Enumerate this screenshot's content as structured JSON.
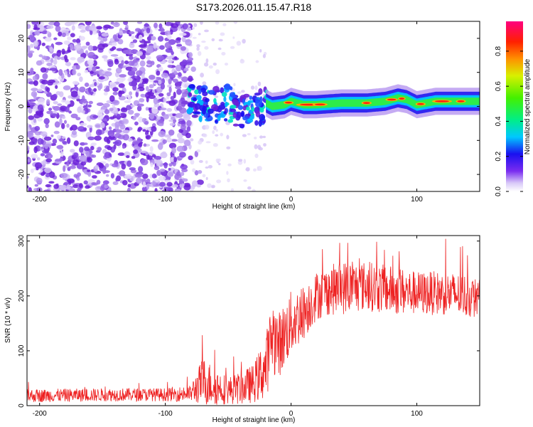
{
  "title": "S173.2026.011.15.47.R18",
  "chart_data": [
    {
      "type": "heatmap",
      "name": "spectrogram",
      "xlabel": "Height of straight line (km)",
      "ylabel": "Frequency (Hz)",
      "xlim": [
        -210,
        150
      ],
      "ylim": [
        -25,
        25
      ],
      "xticks": [
        -200,
        -100,
        0,
        100
      ],
      "yticks": [
        -20,
        -10,
        0,
        10,
        20
      ],
      "colorbar": {
        "label": "Normalized spectral amplitude",
        "range": [
          0,
          0.97
        ],
        "ticks": [
          0.0,
          0.2,
          0.4,
          0.6,
          0.8
        ]
      },
      "ridge": {
        "description": "Doppler line",
        "points": [
          [
            -80,
            1.5
          ],
          [
            -60,
            0.5
          ],
          [
            -50,
            1.0
          ],
          [
            -40,
            -1.5
          ],
          [
            -30,
            -2.0
          ],
          [
            -20,
            1.0
          ],
          [
            -15,
            0.0
          ],
          [
            -5,
            0.5
          ],
          [
            0,
            1.5
          ],
          [
            10,
            0.5
          ],
          [
            20,
            0.5
          ],
          [
            40,
            1.0
          ],
          [
            60,
            1.0
          ],
          [
            75,
            1.5
          ],
          [
            85,
            2.5
          ],
          [
            92,
            2.0
          ],
          [
            100,
            0.5
          ],
          [
            115,
            1.5
          ],
          [
            130,
            1.5
          ],
          [
            150,
            1.5
          ]
        ]
      }
    },
    {
      "type": "line",
      "name": "snr",
      "xlabel": "Height of straight line (km)",
      "ylabel": "SNR (10 * v/v)",
      "xlim": [
        -210,
        150
      ],
      "ylim": [
        0,
        310
      ],
      "xticks": [
        -200,
        -100,
        0,
        100
      ],
      "yticks": [
        0,
        100,
        200,
        300
      ],
      "color": "#ee2222",
      "envelope": {
        "x": [
          -210,
          -140,
          -100,
          -80,
          -70,
          -60,
          -50,
          -40,
          -30,
          -20,
          -15,
          -10,
          0,
          10,
          20,
          30,
          40,
          60,
          80,
          100,
          120,
          140,
          150
        ],
        "mean": [
          18,
          20,
          20,
          22,
          45,
          35,
          28,
          32,
          40,
          70,
          130,
          110,
          150,
          170,
          200,
          210,
          215,
          218,
          210,
          205,
          205,
          200,
          195
        ],
        "amp": [
          12,
          12,
          12,
          15,
          45,
          35,
          25,
          30,
          35,
          60,
          70,
          60,
          60,
          50,
          45,
          45,
          50,
          45,
          45,
          40,
          40,
          40,
          35
        ]
      }
    }
  ]
}
